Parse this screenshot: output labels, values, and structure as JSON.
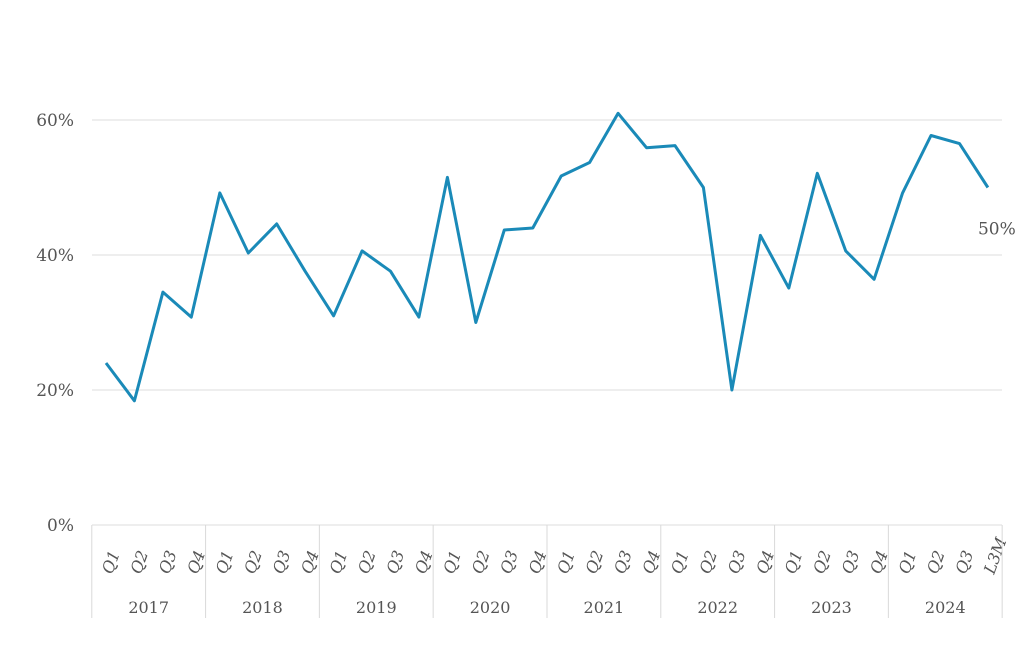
{
  "chart_data": {
    "type": "line",
    "title": "",
    "xlabel": "",
    "ylabel": "",
    "ylim": [
      0,
      60
    ],
    "yticks": [
      "0%",
      "20%",
      "40%",
      "60%"
    ],
    "grid": true,
    "categories": [
      "Q1",
      "Q2",
      "Q3",
      "Q4",
      "Q1",
      "Q2",
      "Q3",
      "Q4",
      "Q1",
      "Q2",
      "Q3",
      "Q4",
      "Q1",
      "Q2",
      "Q3",
      "Q4",
      "Q1",
      "Q2",
      "Q3",
      "Q4",
      "Q1",
      "Q2",
      "Q3",
      "Q4",
      "Q1",
      "Q2",
      "Q3",
      "Q4",
      "Q1",
      "Q2",
      "Q3",
      "L3M"
    ],
    "groups": [
      {
        "label": "2017",
        "count": 4
      },
      {
        "label": "2018",
        "count": 4
      },
      {
        "label": "2019",
        "count": 4
      },
      {
        "label": "2020",
        "count": 4
      },
      {
        "label": "2021",
        "count": 4
      },
      {
        "label": "2022",
        "count": 4
      },
      {
        "label": "2023",
        "count": 4
      },
      {
        "label": "2024",
        "count": 4
      }
    ],
    "series": [
      {
        "color": "#1a8ab8",
        "values": [
          24,
          18.4,
          34.5,
          30.8,
          49.2,
          40.3,
          44.6,
          37.6,
          31.0,
          40.6,
          37.6,
          30.8,
          51.5,
          30.0,
          43.7,
          44.0,
          51.7,
          53.7,
          61.0,
          55.9,
          56.2,
          50.0,
          20.0,
          42.9,
          35.1,
          52.1,
          40.6,
          36.4,
          49.2,
          57.7,
          56.5,
          50.0
        ]
      }
    ],
    "end_label": "50%"
  }
}
